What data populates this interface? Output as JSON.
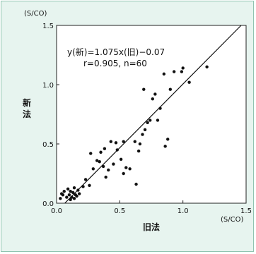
{
  "chart_data": {
    "type": "scatter",
    "title": "",
    "xlabel": "旧法",
    "ylabel": "新法",
    "x_unit": "(S/CO)",
    "y_unit": "(S/CO)",
    "xlim": [
      0,
      1.5
    ],
    "ylim": [
      0,
      1.5
    ],
    "x_ticks": [
      "0.0",
      "0.5",
      "1.0",
      "1.5"
    ],
    "y_ticks": [
      "0.0",
      "0.5",
      "1.0",
      "1.5"
    ],
    "grid": false,
    "annotation": {
      "equation": "y(新)=1.075x(旧)−0.07",
      "stats": "r=0.905, n=60"
    },
    "regression": {
      "slope": 1.075,
      "intercept": -0.07
    },
    "points": [
      [
        0.03,
        0.04
      ],
      [
        0.04,
        0.08
      ],
      [
        0.05,
        0.07
      ],
      [
        0.06,
        0.1
      ],
      [
        0.08,
        0.05
      ],
      [
        0.09,
        0.12
      ],
      [
        0.1,
        0.07
      ],
      [
        0.11,
        0.03
      ],
      [
        0.11,
        0.1
      ],
      [
        0.12,
        0.05
      ],
      [
        0.13,
        0.09
      ],
      [
        0.14,
        0.13
      ],
      [
        0.14,
        0.04
      ],
      [
        0.15,
        0.07
      ],
      [
        0.16,
        0.06
      ],
      [
        0.17,
        0.11
      ],
      [
        0.18,
        0.08
      ],
      [
        0.21,
        0.14
      ],
      [
        0.23,
        0.2
      ],
      [
        0.26,
        0.15
      ],
      [
        0.27,
        0.42
      ],
      [
        0.29,
        0.29
      ],
      [
        0.32,
        0.36
      ],
      [
        0.34,
        0.35
      ],
      [
        0.35,
        0.43
      ],
      [
        0.37,
        0.31
      ],
      [
        0.38,
        0.46
      ],
      [
        0.39,
        0.22
      ],
      [
        0.41,
        0.28
      ],
      [
        0.43,
        0.52
      ],
      [
        0.45,
        0.33
      ],
      [
        0.47,
        0.51
      ],
      [
        0.48,
        0.45
      ],
      [
        0.51,
        0.37
      ],
      [
        0.53,
        0.25
      ],
      [
        0.53,
        0.52
      ],
      [
        0.55,
        0.3
      ],
      [
        0.58,
        0.29
      ],
      [
        0.62,
        0.52
      ],
      [
        0.63,
        0.16
      ],
      [
        0.65,
        0.44
      ],
      [
        0.66,
        0.5
      ],
      [
        0.68,
        0.58
      ],
      [
        0.7,
        0.62
      ],
      [
        0.72,
        0.68
      ],
      [
        0.74,
        0.7
      ],
      [
        0.76,
        0.88
      ],
      [
        0.78,
        0.92
      ],
      [
        0.8,
        0.7
      ],
      [
        0.82,
        0.8
      ],
      [
        0.86,
        0.48
      ],
      [
        0.88,
        0.54
      ],
      [
        0.69,
        0.96
      ],
      [
        0.85,
        1.09
      ],
      [
        0.9,
        0.96
      ],
      [
        0.93,
        1.11
      ],
      [
        0.99,
        1.11
      ],
      [
        1.0,
        1.14
      ],
      [
        1.05,
        1.02
      ],
      [
        1.19,
        1.15
      ]
    ]
  },
  "colors": {
    "background": "#e7f4ef",
    "border": "#8fc4b0",
    "plot_area": "#ffffff",
    "marks": "#111111"
  }
}
